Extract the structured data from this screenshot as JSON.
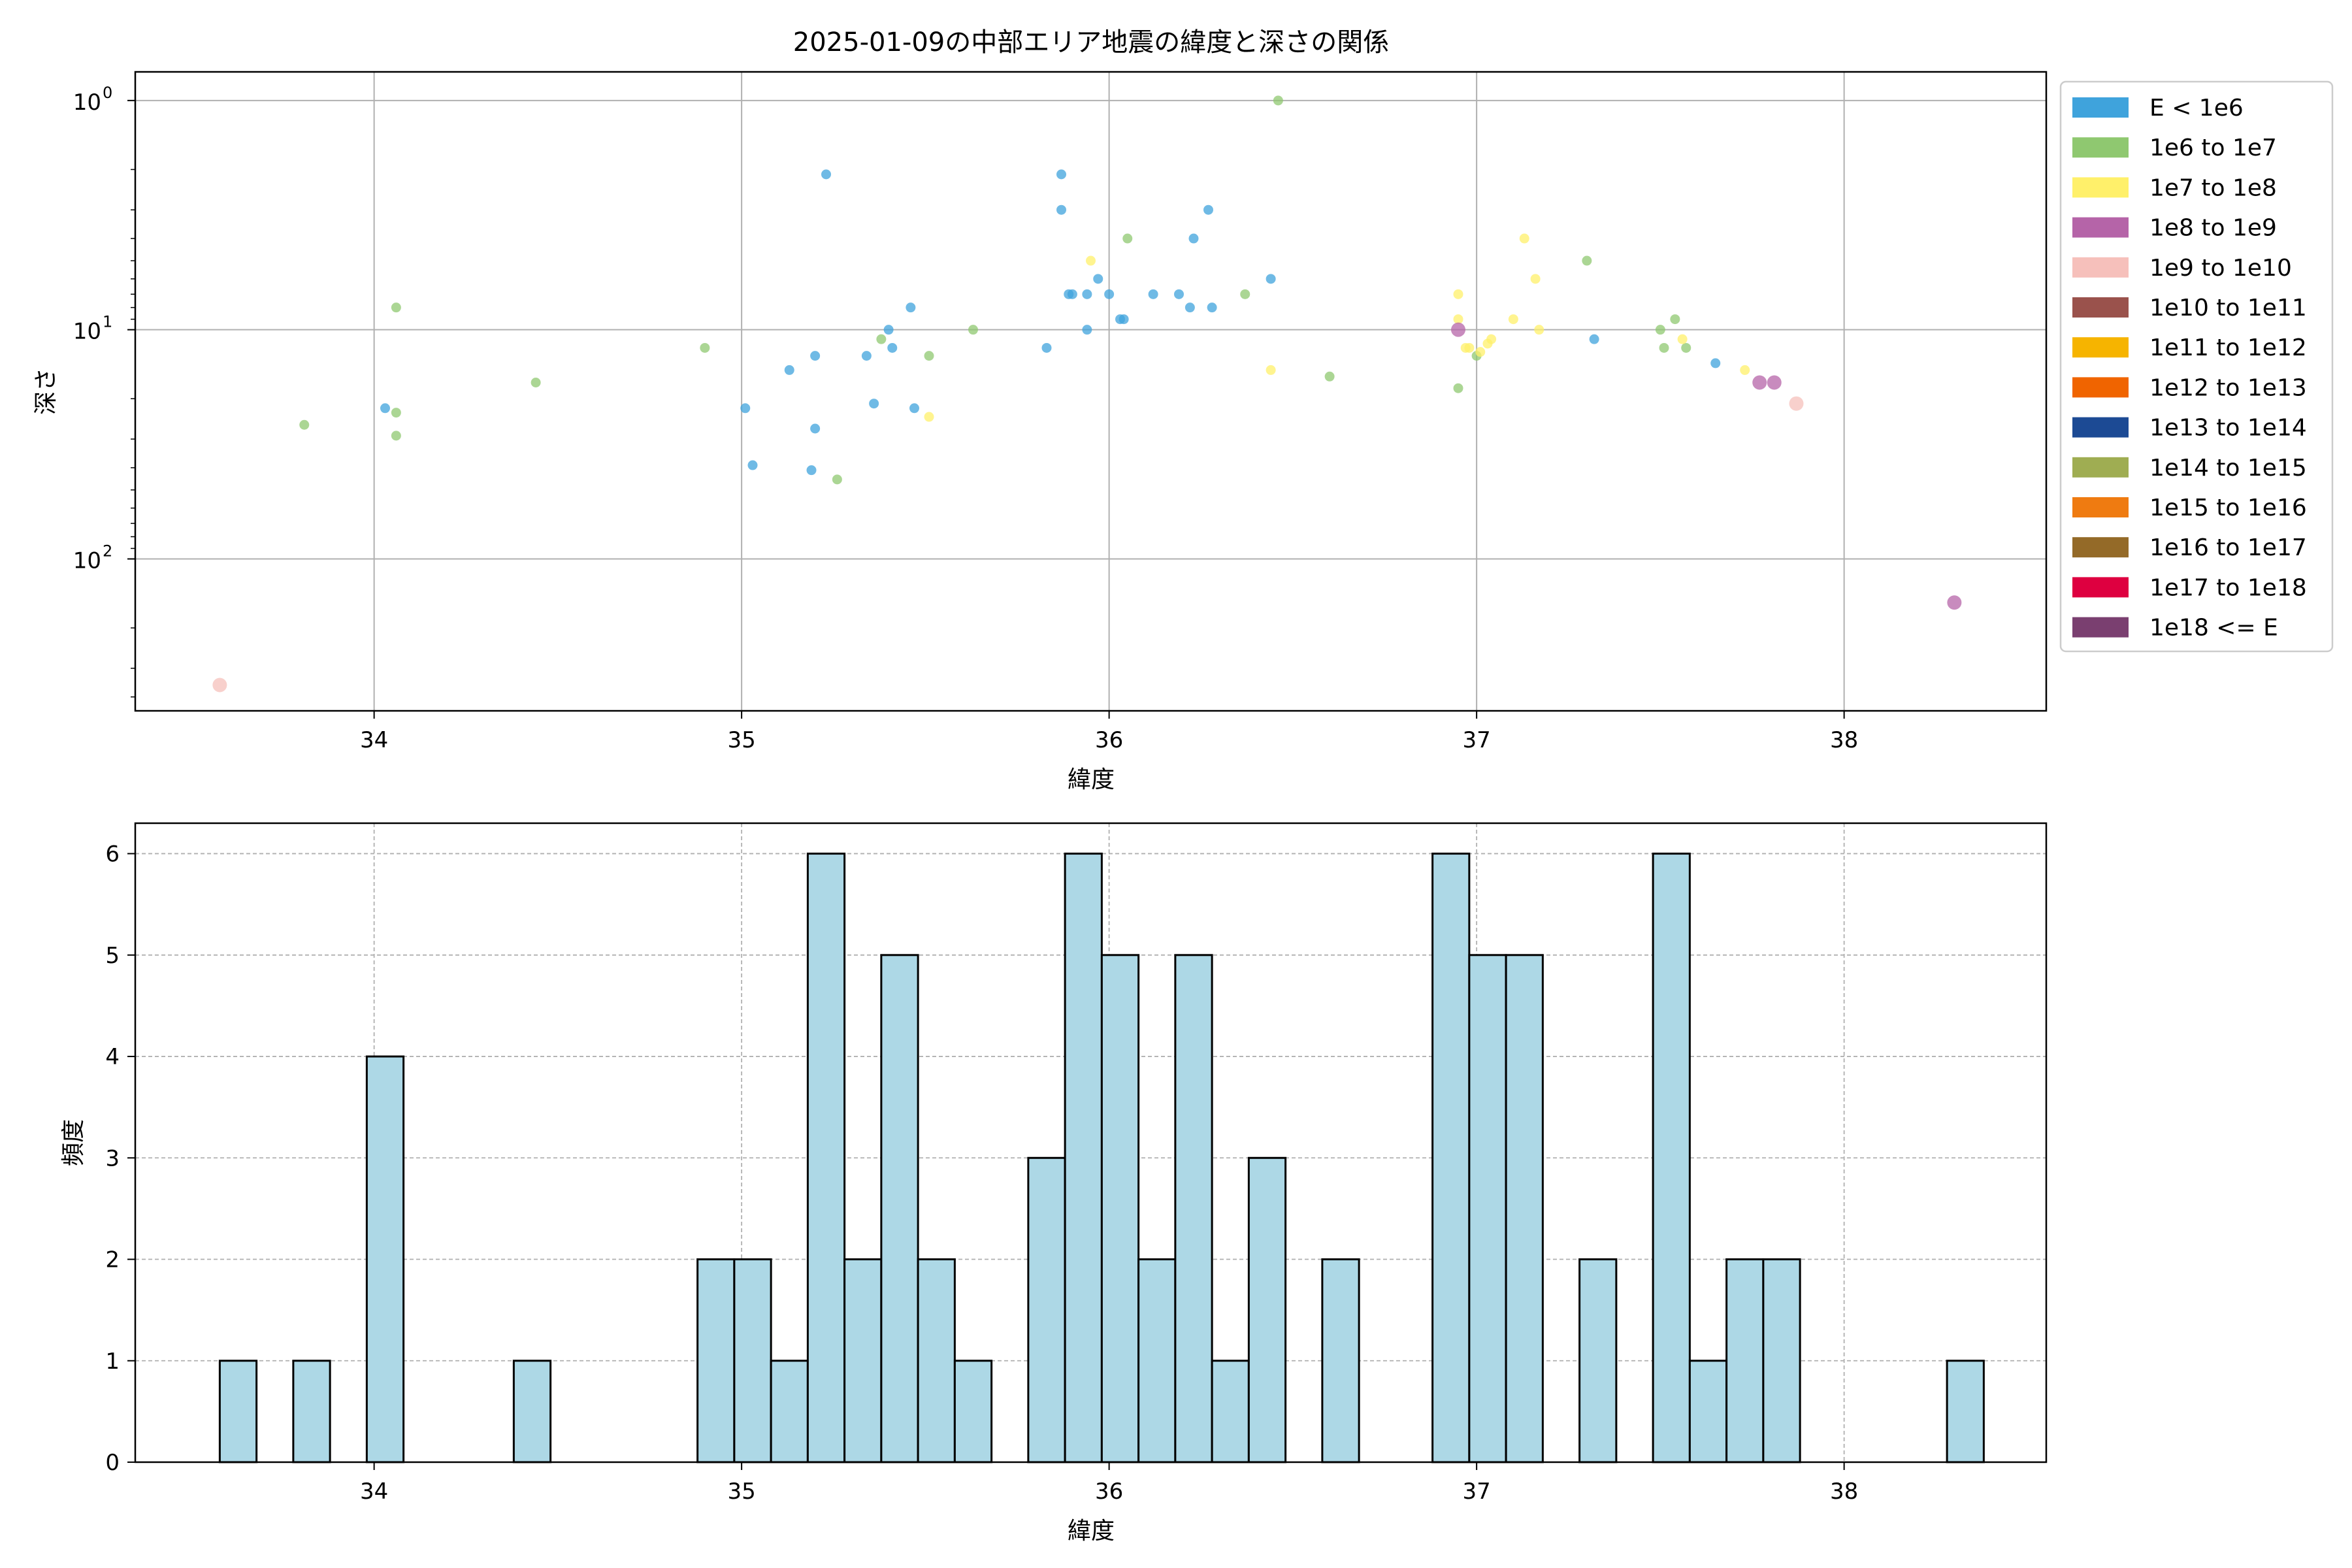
{
  "figure": {
    "title": "2025-01-09の中部エリア地震の緯度と深さの関係"
  },
  "colors": {
    "grid": "#b0b0b0",
    "axis": "#000000",
    "hist_bar": "#add8e6",
    "hist_edge": "#000000"
  },
  "chart_data": [
    {
      "type": "scatter",
      "title": "2025-01-09の中部エリア地震の緯度と深さの関係",
      "xlabel": "緯度",
      "ylabel": "深さ",
      "xlim": [
        33.35,
        38.55
      ],
      "ylim": [
        460,
        0.75
      ],
      "yscale": "log (inverted)",
      "grid": true,
      "legend_position": "outside-right",
      "xticks": [
        {
          "value": 34,
          "label": "34"
        },
        {
          "value": 35,
          "label": "35"
        },
        {
          "value": 36,
          "label": "36"
        },
        {
          "value": 37,
          "label": "37"
        },
        {
          "value": 38,
          "label": "38"
        }
      ],
      "yticks": [
        {
          "value": 1,
          "label": "10",
          "exp": "0"
        },
        {
          "value": 10,
          "label": "10",
          "exp": "1"
        },
        {
          "value": 100,
          "label": "10",
          "exp": "2"
        }
      ],
      "legend": [
        {
          "label": "E < 1e6",
          "color": "#3fa3dc"
        },
        {
          "label": "1e6 to 1e7",
          "color": "#8fc870"
        },
        {
          "label": "1e7 to 1e8",
          "color": "#fff06a"
        },
        {
          "label": "1e8 to 1e9",
          "color": "#b564a8"
        },
        {
          "label": "1e9 to 1e10",
          "color": "#f6c0bb"
        },
        {
          "label": "1e10 to 1e11",
          "color": "#9a524c"
        },
        {
          "label": "1e11 to 1e12",
          "color": "#f6b400"
        },
        {
          "label": "1e12 to 1e13",
          "color": "#f06400"
        },
        {
          "label": "1e13 to 1e14",
          "color": "#1c4a94"
        },
        {
          "label": "1e14 to 1e15",
          "color": "#9fad52"
        },
        {
          "label": "1e15 to 1e16",
          "color": "#ef7b11"
        },
        {
          "label": "1e16 to 1e17",
          "color": "#946a28"
        },
        {
          "label": "1e17 to 1e18",
          "color": "#de0040"
        },
        {
          "label": "1e18 <= E",
          "color": "#7a3f70"
        }
      ],
      "series": [
        {
          "name": "E < 1e6",
          "points": [
            [
              35.23,
              2.1
            ],
            [
              35.87,
              2.1
            ],
            [
              35.87,
              3.0
            ],
            [
              36.27,
              3.0
            ],
            [
              36.23,
              4.0
            ],
            [
              36.44,
              6.0
            ],
            [
              35.89,
              7.0
            ],
            [
              35.9,
              7.0
            ],
            [
              35.94,
              7.0
            ],
            [
              35.97,
              6.0
            ],
            [
              36.0,
              7.0
            ],
            [
              36.12,
              7.0
            ],
            [
              36.19,
              7.0
            ],
            [
              36.22,
              8.0
            ],
            [
              36.28,
              8.0
            ],
            [
              35.46,
              8.0
            ],
            [
              36.03,
              9.0
            ],
            [
              36.04,
              9.0
            ],
            [
              35.94,
              10.0
            ],
            [
              35.4,
              10.0
            ],
            [
              35.41,
              12.0
            ],
            [
              35.83,
              12.0
            ],
            [
              35.34,
              13.0
            ],
            [
              35.2,
              13.0
            ],
            [
              35.13,
              15.0
            ],
            [
              37.32,
              11.0
            ],
            [
              37.65,
              14.0
            ],
            [
              34.03,
              22.0
            ],
            [
              35.01,
              22.0
            ],
            [
              35.36,
              21.0
            ],
            [
              35.47,
              22.0
            ],
            [
              35.2,
              27.0
            ],
            [
              35.03,
              39.0
            ],
            [
              35.19,
              41.0
            ]
          ]
        },
        {
          "name": "1e6 to 1e7",
          "points": [
            [
              36.46,
              1.0
            ],
            [
              36.05,
              4.0
            ],
            [
              37.3,
              5.0
            ],
            [
              36.37,
              7.0
            ],
            [
              34.06,
              8.0
            ],
            [
              35.63,
              10.0
            ],
            [
              37.5,
              10.0
            ],
            [
              37.54,
              9.0
            ],
            [
              35.38,
              11.0
            ],
            [
              37.51,
              12.0
            ],
            [
              37.57,
              12.0
            ],
            [
              34.9,
              12.0
            ],
            [
              35.51,
              13.0
            ],
            [
              37.0,
              13.0
            ],
            [
              36.6,
              16.0
            ],
            [
              34.44,
              17.0
            ],
            [
              36.95,
              18.0
            ],
            [
              34.06,
              23.0
            ],
            [
              33.81,
              26.0
            ],
            [
              34.06,
              29.0
            ],
            [
              35.26,
              45.0
            ]
          ]
        },
        {
          "name": "1e7 to 1e8",
          "points": [
            [
              37.13,
              4.0
            ],
            [
              35.95,
              5.0
            ],
            [
              37.16,
              6.0
            ],
            [
              36.95,
              7.0
            ],
            [
              36.95,
              9.0
            ],
            [
              37.1,
              9.0
            ],
            [
              37.17,
              10.0
            ],
            [
              37.04,
              11.0
            ],
            [
              37.03,
              11.5
            ],
            [
              37.56,
              11.0
            ],
            [
              36.97,
              12.0
            ],
            [
              36.98,
              12.0
            ],
            [
              37.01,
              12.5
            ],
            [
              36.44,
              15.0
            ],
            [
              37.73,
              15.0
            ],
            [
              35.51,
              24.0
            ]
          ]
        },
        {
          "name": "1e8 to 1e9",
          "points": [
            [
              36.95,
              10.0
            ],
            [
              37.77,
              17.0
            ],
            [
              37.81,
              17.0
            ],
            [
              38.3,
              155.0
            ]
          ]
        },
        {
          "name": "1e9 to 1e10",
          "points": [
            [
              37.87,
              21.0
            ],
            [
              33.58,
              355.0
            ]
          ]
        }
      ]
    },
    {
      "type": "bar",
      "subtype": "histogram",
      "xlabel": "緯度",
      "ylabel": "頻度",
      "xlim": [
        33.35,
        38.55
      ],
      "ylim": [
        0,
        6.3
      ],
      "grid": true,
      "bin_width": 0.1,
      "xticks": [
        {
          "value": 34,
          "label": "34"
        },
        {
          "value": 35,
          "label": "35"
        },
        {
          "value": 36,
          "label": "36"
        },
        {
          "value": 37,
          "label": "37"
        },
        {
          "value": 38,
          "label": "38"
        }
      ],
      "yticks": [
        {
          "value": 0,
          "label": "0"
        },
        {
          "value": 1,
          "label": "1"
        },
        {
          "value": 2,
          "label": "2"
        },
        {
          "value": 3,
          "label": "3"
        },
        {
          "value": 4,
          "label": "4"
        },
        {
          "value": 5,
          "label": "5"
        },
        {
          "value": 6,
          "label": "6"
        }
      ],
      "bins": [
        {
          "start": 33.58,
          "end": 33.68,
          "count": 1
        },
        {
          "start": 33.78,
          "end": 33.88,
          "count": 1
        },
        {
          "start": 33.98,
          "end": 34.08,
          "count": 4
        },
        {
          "start": 34.38,
          "end": 34.48,
          "count": 1
        },
        {
          "start": 34.88,
          "end": 34.98,
          "count": 2
        },
        {
          "start": 34.98,
          "end": 35.08,
          "count": 2
        },
        {
          "start": 35.08,
          "end": 35.18,
          "count": 1
        },
        {
          "start": 35.18,
          "end": 35.28,
          "count": 6
        },
        {
          "start": 35.28,
          "end": 35.38,
          "count": 2
        },
        {
          "start": 35.38,
          "end": 35.48,
          "count": 5
        },
        {
          "start": 35.48,
          "end": 35.58,
          "count": 2
        },
        {
          "start": 35.58,
          "end": 35.68,
          "count": 1
        },
        {
          "start": 35.78,
          "end": 35.88,
          "count": 3
        },
        {
          "start": 35.88,
          "end": 35.98,
          "count": 6
        },
        {
          "start": 35.98,
          "end": 36.08,
          "count": 5
        },
        {
          "start": 36.08,
          "end": 36.18,
          "count": 2
        },
        {
          "start": 36.18,
          "end": 36.28,
          "count": 5
        },
        {
          "start": 36.28,
          "end": 36.38,
          "count": 1
        },
        {
          "start": 36.38,
          "end": 36.48,
          "count": 3
        },
        {
          "start": 36.58,
          "end": 36.68,
          "count": 2
        },
        {
          "start": 36.88,
          "end": 36.98,
          "count": 6
        },
        {
          "start": 36.98,
          "end": 37.08,
          "count": 5
        },
        {
          "start": 37.08,
          "end": 37.18,
          "count": 5
        },
        {
          "start": 37.28,
          "end": 37.38,
          "count": 2
        },
        {
          "start": 37.48,
          "end": 37.58,
          "count": 6
        },
        {
          "start": 37.58,
          "end": 37.68,
          "count": 1
        },
        {
          "start": 37.68,
          "end": 37.78,
          "count": 2
        },
        {
          "start": 37.78,
          "end": 37.88,
          "count": 2
        },
        {
          "start": 38.28,
          "end": 38.38,
          "count": 1
        }
      ]
    }
  ]
}
